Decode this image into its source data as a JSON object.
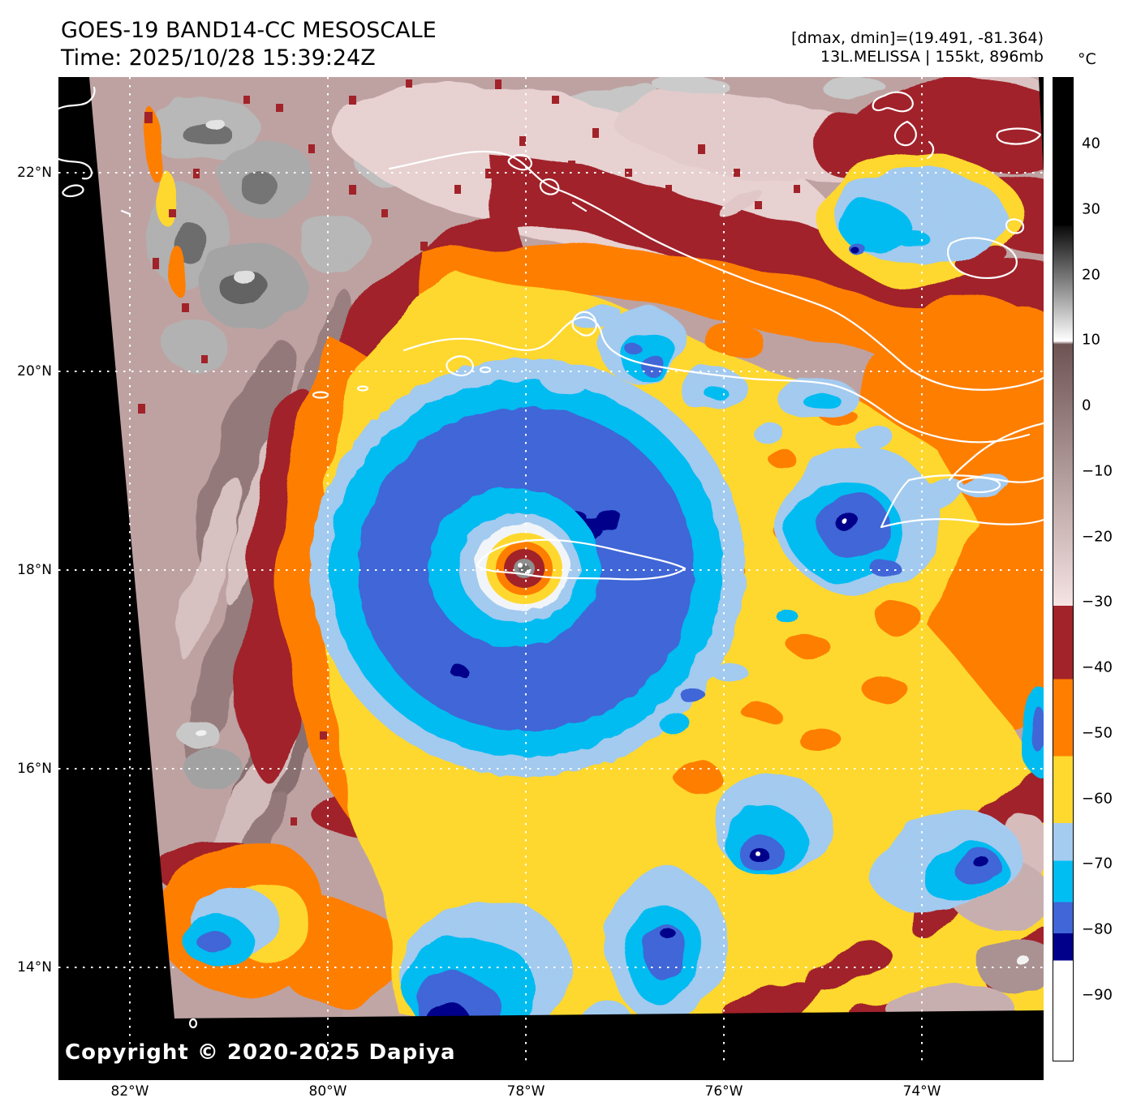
{
  "header": {
    "title": "GOES-19 BAND14-CC MESOSCALE",
    "time": "Time: 2025/10/28 15:39:24Z",
    "dmax_dmin": "[dmax, dmin]=(19.491, -81.364)",
    "storm": "13L.MELISSA | 155kt, 896mb"
  },
  "colorbar": {
    "unit": "°C",
    "tick_labels": [
      "40",
      "30",
      "20",
      "10",
      "0",
      "−10",
      "−20",
      "−30",
      "−40",
      "−50",
      "−60",
      "−70",
      "−80",
      "−90"
    ],
    "tick_values": [
      40,
      30,
      20,
      10,
      0,
      -10,
      -20,
      -30,
      -40,
      -50,
      -60,
      -70,
      -80,
      -90
    ],
    "scale_top_c": 50.15,
    "scale_bottom_c": -100.15,
    "segments": [
      {
        "kind": "solid",
        "color": "#000000",
        "from_c": 50.15,
        "to_c": 27.5
      },
      {
        "kind": "ramp",
        "top": "#0a0a0a",
        "bottom": "#ffffff",
        "from_c": 27.5,
        "to_c": 9.9
      },
      {
        "kind": "ramp",
        "top": "#6e5353",
        "bottom": "#f6e3e3",
        "from_c": 9.4,
        "to_c": -30.6
      },
      {
        "kind": "solid",
        "color": "#a22329",
        "from_c": -30.6,
        "to_c": -41.8
      },
      {
        "kind": "solid",
        "color": "#ff7e00",
        "from_c": -41.8,
        "to_c": -53.6
      },
      {
        "kind": "solid",
        "color": "#ffd92e",
        "from_c": -53.6,
        "to_c": -63.8
      },
      {
        "kind": "solid",
        "color": "#a4cbf0",
        "from_c": -63.8,
        "to_c": -69.6
      },
      {
        "kind": "solid",
        "color": "#00bdf2",
        "from_c": -69.6,
        "to_c": -75.9
      },
      {
        "kind": "solid",
        "color": "#4066d8",
        "from_c": -75.9,
        "to_c": -80.7
      },
      {
        "kind": "solid",
        "color": "#00008b",
        "from_c": -80.7,
        "to_c": -84.8
      },
      {
        "kind": "solid",
        "color": "#ffffff",
        "from_c": -84.8,
        "to_c": -100.15
      }
    ]
  },
  "axes": {
    "lat_labels": [
      "22°N",
      "20°N",
      "18°N",
      "16°N",
      "14°N"
    ],
    "lon_labels": [
      "82°W",
      "80°W",
      "78°W",
      "76°W",
      "74°W"
    ]
  },
  "map": {
    "copyright": "Copyright © 2020-2025 Dapiya"
  },
  "palette": {
    "background": "#000000",
    "dark_red": "#a22329",
    "orange": "#ff7e00",
    "yellow": "#ffd92e",
    "light_blue": "#a4cbf0",
    "cyan": "#00bdf2",
    "royal_blue": "#4066d8",
    "navy": "#00008b",
    "cirrus_taupe": "#bfa3a3",
    "coastline": "#ffffff",
    "eye_gray": "#8f8f8f"
  }
}
